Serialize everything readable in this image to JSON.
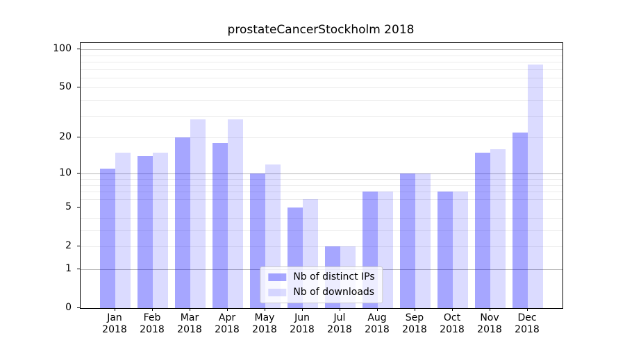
{
  "chart_data": {
    "type": "bar",
    "title": "prostateCancerStockholm 2018",
    "categories": [
      "Jan 2018",
      "Feb 2018",
      "Mar 2018",
      "Apr 2018",
      "May 2018",
      "Jun 2018",
      "Jul 2018",
      "Aug 2018",
      "Sep 2018",
      "Oct 2018",
      "Nov 2018",
      "Dec 2018"
    ],
    "series": [
      {
        "name": "Nb of distinct IPs",
        "color": "rgba(0,0,255,0.35)",
        "values": [
          11,
          14,
          20,
          18,
          10,
          5,
          2,
          7,
          10,
          7,
          15,
          22
        ]
      },
      {
        "name": "Nb of downloads",
        "color": "rgba(0,0,255,0.14)",
        "values": [
          15,
          15,
          28,
          28,
          12,
          6,
          2,
          7,
          10,
          7,
          16,
          76
        ]
      }
    ],
    "xlabel": "",
    "ylabel": "",
    "yscale": "log1p",
    "ylim": [
      0,
      112
    ],
    "y_tick_labels": [
      0,
      1,
      2,
      5,
      10,
      20,
      50,
      100
    ],
    "major_grid_values": [
      1,
      10,
      100
    ],
    "minor_grid_values": [
      2,
      3,
      4,
      6,
      7,
      8,
      9,
      20,
      30,
      40,
      50,
      60,
      70,
      80,
      90
    ],
    "grid": true,
    "legend_position": "lower center"
  },
  "colors": {
    "bar_ips_rendered": "#a7a7f7",
    "bar_downloads_rendered": "#dcdcfc",
    "grid_major": "#b4b4b4",
    "grid_minor": "#ebebeb",
    "spine": "#000000",
    "text": "#000000",
    "legend_background": "rgba(255,255,255,0.8)",
    "legend_border": "#cccccc"
  }
}
